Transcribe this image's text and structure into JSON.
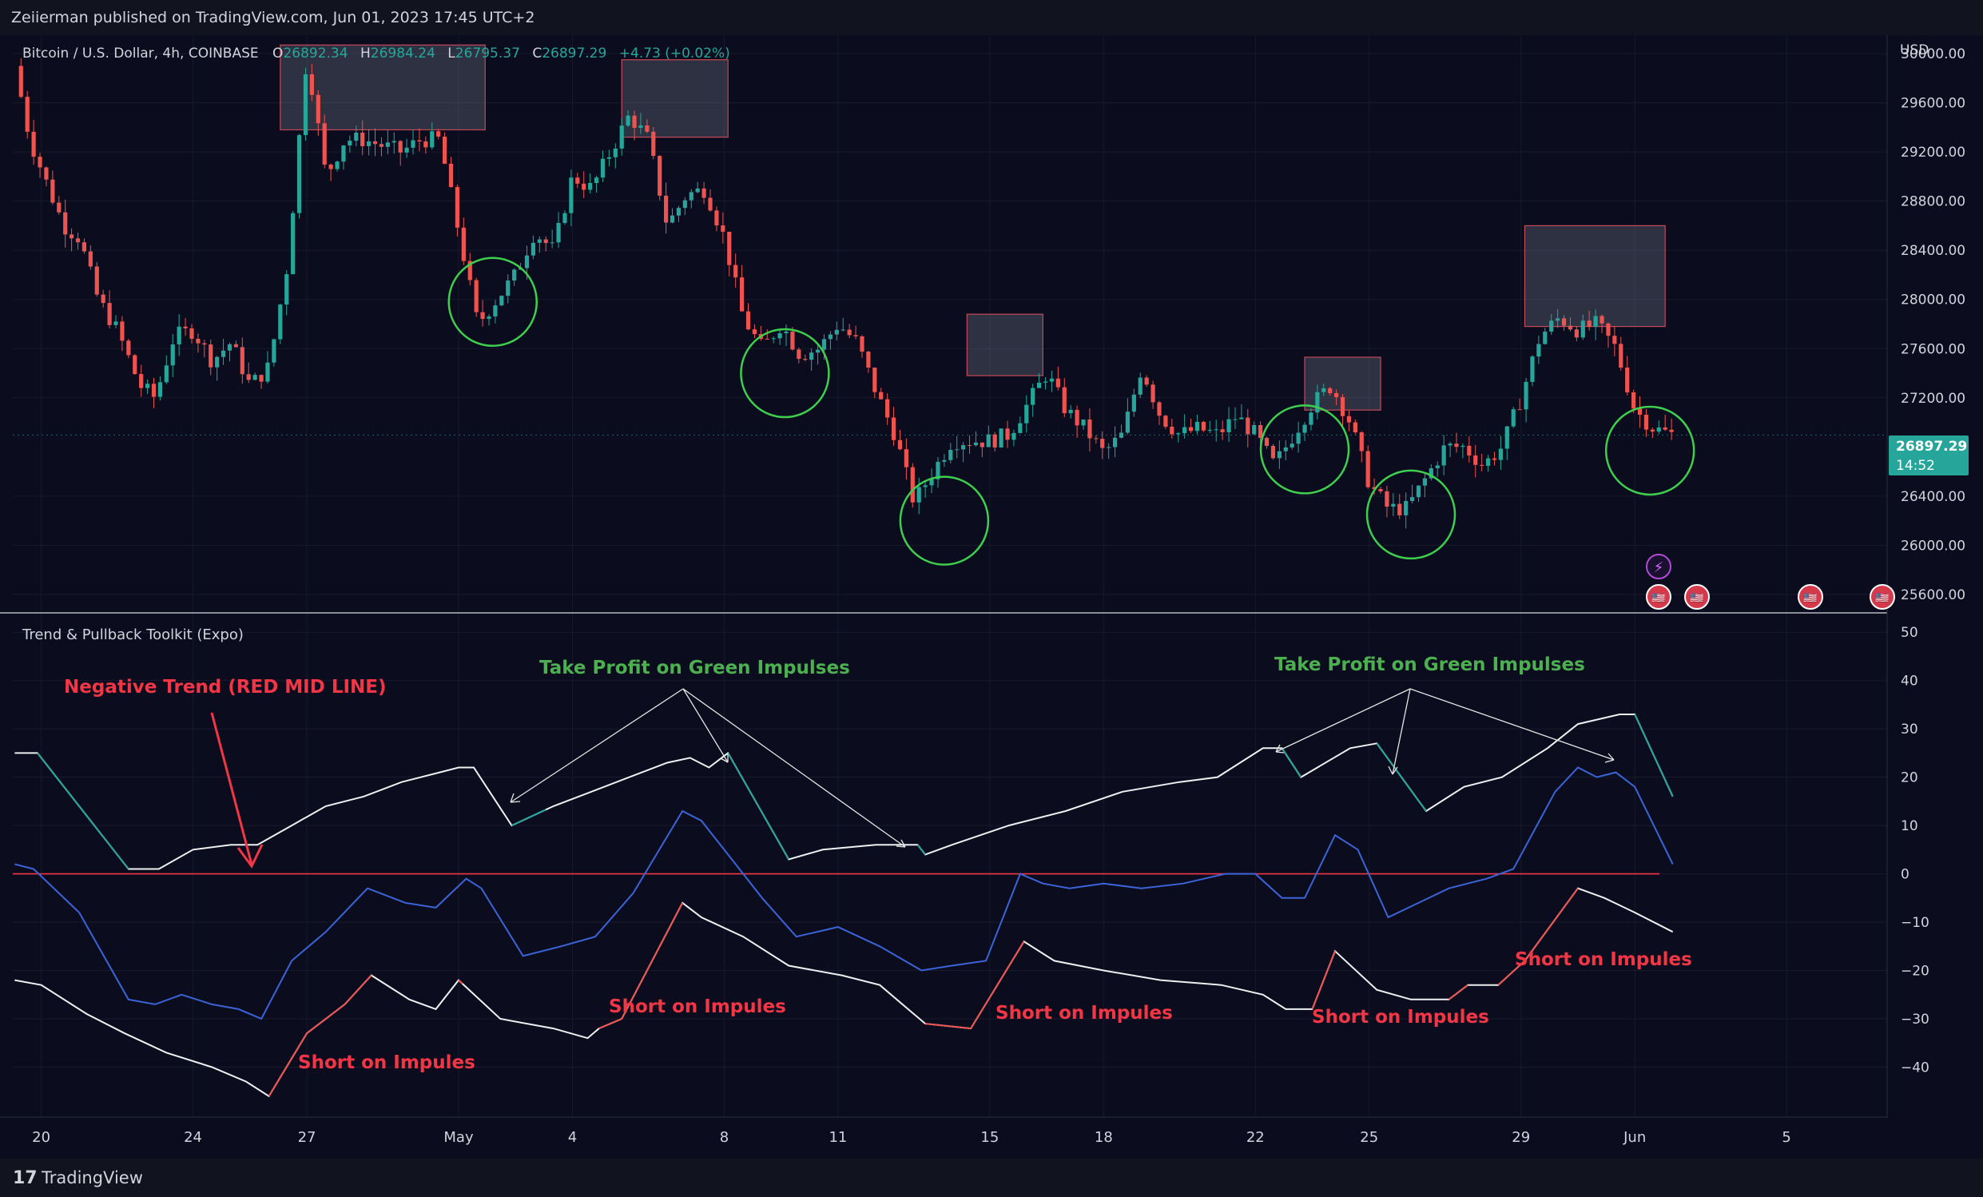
{
  "publisher_line": "Zeiierman published on TradingView.com, Jun 01, 2023 17:45 UTC+2",
  "footer": {
    "logo_glyph": "17",
    "brand": "TradingView"
  },
  "colors": {
    "background": "#131722",
    "up": "#26a69a",
    "down": "#ef5350",
    "blue_line": "#3b64d8",
    "green_text": "#4caf50",
    "red_text": "#f23645",
    "circle": "#3fcf4e",
    "box": "#787b86"
  },
  "chart_data": [
    {
      "type": "candlestick",
      "title": "Bitcoin / U.S. Dollar, 4h, COINBASE",
      "ohlc": {
        "o_label": "O",
        "o": "26892.34",
        "h_label": "H",
        "h": "26984.24",
        "l_label": "L",
        "l": "26795.37",
        "c_label": "C",
        "c": "26897.29",
        "change": "+4.73 (+0.02%)"
      },
      "currency": "USD",
      "y_ticks": [
        "30000.00",
        "29600.00",
        "29200.00",
        "28800.00",
        "28400.00",
        "28000.00",
        "27600.00",
        "27200.00",
        "26400.00",
        "26000.00",
        "25600.00"
      ],
      "y_tick_values": [
        30000,
        29600,
        29200,
        28800,
        28400,
        28000,
        27600,
        27200,
        26400,
        26000,
        25600
      ],
      "ylim": [
        25450,
        30150
      ],
      "last_price": "26897.29",
      "last_price_value": 26897.29,
      "countdown": "14:52",
      "x_ticks": [
        "20",
        "24",
        "27",
        "May",
        "4",
        "8",
        "11",
        "15",
        "18",
        "22",
        "25",
        "29",
        "Jun",
        "5"
      ],
      "x_tick_days": [
        0,
        4,
        7,
        11,
        14,
        18,
        21,
        25,
        28,
        32,
        35,
        39,
        42,
        46
      ],
      "xlim_days": [
        -0.75,
        48.65
      ],
      "close_path": [
        [
          -0.7,
          29900
        ],
        [
          -0.3,
          29300
        ],
        [
          0.2,
          28900
        ],
        [
          0.6,
          28600
        ],
        [
          1.0,
          28500
        ],
        [
          1.5,
          28000
        ],
        [
          2.0,
          27750
        ],
        [
          2.6,
          27300
        ],
        [
          3.0,
          27200
        ],
        [
          3.5,
          27700
        ],
        [
          4.0,
          27750
        ],
        [
          4.5,
          27500
        ],
        [
          5.0,
          27650
        ],
        [
          5.5,
          27300
        ],
        [
          6.0,
          27450
        ],
        [
          6.5,
          28300
        ],
        [
          7.0,
          30000
        ],
        [
          7.5,
          29000
        ],
        [
          8.0,
          29300
        ],
        [
          8.5,
          29300
        ],
        [
          9.0,
          29250
        ],
        [
          9.5,
          29200
        ],
        [
          10.0,
          29300
        ],
        [
          10.5,
          29300
        ],
        [
          11.0,
          28550
        ],
        [
          11.5,
          27800
        ],
        [
          12.0,
          28000
        ],
        [
          12.5,
          28200
        ],
        [
          13.0,
          28550
        ],
        [
          13.5,
          28400
        ],
        [
          14.0,
          29000
        ],
        [
          14.5,
          28900
        ],
        [
          15.0,
          29200
        ],
        [
          15.5,
          29500
        ],
        [
          16.0,
          29300
        ],
        [
          16.5,
          28600
        ],
        [
          17.0,
          28850
        ],
        [
          17.5,
          28900
        ],
        [
          18.0,
          28500
        ],
        [
          18.5,
          27850
        ],
        [
          19.0,
          27600
        ],
        [
          19.5,
          27800
        ],
        [
          20.0,
          27550
        ],
        [
          20.5,
          27600
        ],
        [
          21.0,
          27800
        ],
        [
          21.5,
          27650
        ],
        [
          22.0,
          27250
        ],
        [
          22.5,
          26900
        ],
        [
          23.0,
          26350
        ],
        [
          23.5,
          26600
        ],
        [
          24.0,
          26850
        ],
        [
          24.5,
          26850
        ],
        [
          25.0,
          26850
        ],
        [
          25.5,
          26900
        ],
        [
          26.0,
          27150
        ],
        [
          26.5,
          27400
        ],
        [
          27.0,
          27100
        ],
        [
          27.5,
          26950
        ],
        [
          28.0,
          26750
        ],
        [
          28.5,
          26900
        ],
        [
          29.0,
          27450
        ],
        [
          29.5,
          27050
        ],
        [
          30.0,
          26900
        ],
        [
          30.5,
          26950
        ],
        [
          31.0,
          26900
        ],
        [
          31.5,
          27050
        ],
        [
          32.0,
          26900
        ],
        [
          32.5,
          26650
        ],
        [
          33.0,
          26900
        ],
        [
          33.5,
          27150
        ],
        [
          34.0,
          27300
        ],
        [
          34.5,
          27000
        ],
        [
          35.0,
          26500
        ],
        [
          35.5,
          26300
        ],
        [
          36.0,
          26300
        ],
        [
          36.5,
          26550
        ],
        [
          37.0,
          26800
        ],
        [
          37.5,
          26800
        ],
        [
          38.0,
          26650
        ],
        [
          38.5,
          26800
        ],
        [
          39.0,
          27200
        ],
        [
          39.5,
          27700
        ],
        [
          40.0,
          27850
        ],
        [
          40.5,
          27750
        ],
        [
          41.0,
          27800
        ],
        [
          41.5,
          27600
        ],
        [
          42.0,
          27100
        ],
        [
          42.5,
          26950
        ],
        [
          43.0,
          26900
        ]
      ],
      "boxes": [
        {
          "x_days": [
            6.3,
            11.7
          ],
          "y": [
            29380,
            30070
          ]
        },
        {
          "x_days": [
            15.3,
            18.1
          ],
          "y": [
            29320,
            29950
          ]
        },
        {
          "x_days": [
            24.4,
            26.4
          ],
          "y": [
            27380,
            27880
          ]
        },
        {
          "x_days": [
            33.3,
            35.3
          ],
          "y": [
            27100,
            27530
          ]
        },
        {
          "x_days": [
            39.1,
            42.8
          ],
          "y": [
            27780,
            28600
          ]
        }
      ],
      "circles": [
        {
          "x_day": 11.9,
          "y": 27980
        },
        {
          "x_day": 19.6,
          "y": 27400
        },
        {
          "x_day": 23.8,
          "y": 26200
        },
        {
          "x_day": 33.3,
          "y": 26780
        },
        {
          "x_day": 36.1,
          "y": 26250
        },
        {
          "x_day": 42.4,
          "y": 26770
        }
      ]
    },
    {
      "type": "line",
      "title": "Trend & Pullback Toolkit (Expo)",
      "y_ticks": [
        "50",
        "40",
        "30",
        "20",
        "10",
        "0",
        "−10",
        "−20",
        "−30",
        "−40"
      ],
      "y_tick_values": [
        50,
        40,
        30,
        20,
        10,
        0,
        -10,
        -20,
        -30,
        -40
      ],
      "ylim": [
        -50.5,
        54
      ],
      "upper_line": [
        [
          -0.7,
          25
        ],
        [
          -0.1,
          25
        ],
        [
          2.3,
          1
        ],
        [
          3.1,
          1
        ],
        [
          4,
          5
        ],
        [
          5,
          6
        ],
        [
          5.7,
          6
        ],
        [
          6.6,
          10
        ],
        [
          7.5,
          14
        ],
        [
          8.5,
          16
        ],
        [
          9.5,
          19
        ],
        [
          10.5,
          21
        ],
        [
          11,
          22
        ],
        [
          11.4,
          22
        ],
        [
          12.4,
          10
        ],
        [
          13.5,
          14
        ],
        [
          14.5,
          17
        ],
        [
          15.5,
          20
        ],
        [
          16.5,
          23
        ],
        [
          17.1,
          24
        ],
        [
          17.6,
          22
        ],
        [
          18.1,
          25
        ],
        [
          19.7,
          3
        ],
        [
          20.6,
          5
        ],
        [
          22,
          6
        ],
        [
          23.1,
          6
        ],
        [
          23.3,
          4
        ],
        [
          24,
          6
        ],
        [
          25.5,
          10
        ],
        [
          27,
          13
        ],
        [
          28.5,
          17
        ],
        [
          30,
          19
        ],
        [
          31,
          20
        ],
        [
          32.2,
          26
        ],
        [
          32.7,
          26
        ],
        [
          33.2,
          20
        ],
        [
          34.5,
          26
        ],
        [
          35.2,
          27
        ],
        [
          36.5,
          13
        ],
        [
          37.5,
          18
        ],
        [
          38.5,
          20
        ],
        [
          39.7,
          26
        ],
        [
          40.5,
          31
        ],
        [
          41.6,
          33
        ],
        [
          42,
          33
        ],
        [
          43,
          16
        ]
      ],
      "upper_green_segments": [
        [
          -0.1,
          2.3
        ],
        [
          12.4,
          13.3
        ],
        [
          18.1,
          19.7
        ],
        [
          23.1,
          23.3
        ],
        [
          32.7,
          33.2
        ],
        [
          35.2,
          36.5
        ],
        [
          42,
          43
        ]
      ],
      "blue_line": [
        [
          -0.7,
          2
        ],
        [
          -0.2,
          1
        ],
        [
          1,
          -8
        ],
        [
          2.3,
          -26
        ],
        [
          3,
          -27
        ],
        [
          3.7,
          -25
        ],
        [
          4.5,
          -27
        ],
        [
          5.2,
          -28
        ],
        [
          5.8,
          -30
        ],
        [
          6.6,
          -18
        ],
        [
          7.5,
          -12
        ],
        [
          8.6,
          -3
        ],
        [
          9.6,
          -6
        ],
        [
          10.4,
          -7
        ],
        [
          11.2,
          -1
        ],
        [
          11.6,
          -3
        ],
        [
          12.7,
          -17
        ],
        [
          13.7,
          -15
        ],
        [
          14.6,
          -13
        ],
        [
          15.6,
          -4
        ],
        [
          16.9,
          13
        ],
        [
          17.4,
          11
        ],
        [
          18,
          5
        ],
        [
          19,
          -5
        ],
        [
          19.9,
          -13
        ],
        [
          21,
          -11
        ],
        [
          22.1,
          -15
        ],
        [
          23.2,
          -20
        ],
        [
          24,
          -19
        ],
        [
          24.9,
          -18
        ],
        [
          25.8,
          0
        ],
        [
          26.4,
          -2
        ],
        [
          27.1,
          -3
        ],
        [
          28,
          -2
        ],
        [
          29,
          -3
        ],
        [
          30.1,
          -2
        ],
        [
          31.2,
          0
        ],
        [
          32,
          0
        ],
        [
          32.7,
          -5
        ],
        [
          33.3,
          -5
        ],
        [
          34.1,
          8
        ],
        [
          34.7,
          5
        ],
        [
          35.5,
          -9
        ],
        [
          36.3,
          -6
        ],
        [
          37.1,
          -3
        ],
        [
          38.1,
          -1
        ],
        [
          38.8,
          1
        ],
        [
          39.9,
          17
        ],
        [
          40.5,
          22
        ],
        [
          41,
          20
        ],
        [
          41.5,
          21
        ],
        [
          42,
          18
        ],
        [
          43,
          2
        ]
      ],
      "lower_line": [
        [
          -0.7,
          -22
        ],
        [
          0,
          -23
        ],
        [
          1.2,
          -29
        ],
        [
          2.2,
          -33
        ],
        [
          3.3,
          -37
        ],
        [
          4.5,
          -40
        ],
        [
          5.4,
          -43
        ],
        [
          6,
          -46
        ],
        [
          7,
          -33
        ],
        [
          8,
          -27
        ],
        [
          8.7,
          -21
        ],
        [
          9.7,
          -26
        ],
        [
          10.4,
          -28
        ],
        [
          11,
          -22
        ],
        [
          12.1,
          -30
        ],
        [
          13.5,
          -32
        ],
        [
          14.4,
          -34
        ],
        [
          14.7,
          -32
        ],
        [
          15.3,
          -30
        ],
        [
          16.9,
          -6
        ],
        [
          17.4,
          -9
        ],
        [
          18.5,
          -13
        ],
        [
          19.7,
          -19
        ],
        [
          21.1,
          -21
        ],
        [
          22.1,
          -23
        ],
        [
          23.3,
          -31
        ],
        [
          24.5,
          -32
        ],
        [
          25.9,
          -14
        ],
        [
          26.7,
          -18
        ],
        [
          28,
          -20
        ],
        [
          29.5,
          -22
        ],
        [
          31.1,
          -23
        ],
        [
          32.2,
          -25
        ],
        [
          32.8,
          -28
        ],
        [
          33.5,
          -28
        ],
        [
          34.1,
          -16
        ],
        [
          35.2,
          -24
        ],
        [
          36.1,
          -26
        ],
        [
          37.1,
          -26
        ],
        [
          37.6,
          -23
        ],
        [
          38.4,
          -23
        ],
        [
          39.1,
          -18
        ],
        [
          40.5,
          -3
        ],
        [
          41.2,
          -5
        ],
        [
          42,
          -8
        ],
        [
          43,
          -12
        ]
      ],
      "lower_red_segments": [
        [
          6,
          8.7
        ],
        [
          11,
          11.1
        ],
        [
          14.7,
          16.9
        ],
        [
          23.3,
          25.9
        ],
        [
          33.5,
          34.1
        ],
        [
          37.1,
          37.6
        ],
        [
          38.4,
          40.5
        ]
      ],
      "annotations": {
        "negative_trend": "Negative Trend (RED MID LINE)",
        "take_profit_1": "Take Profit on Green Impulses",
        "take_profit_2": "Take Profit on Green Impulses",
        "short_1": "Short on Impules",
        "short_2": "Short on Impules",
        "short_3": "Short on Impules",
        "short_4": "Short on Impules",
        "short_5": "Short on Impules"
      },
      "badges": [
        "⚡",
        "🇺🇸",
        "🇺🇸",
        "🇺🇸",
        "🇺🇸"
      ]
    }
  ]
}
